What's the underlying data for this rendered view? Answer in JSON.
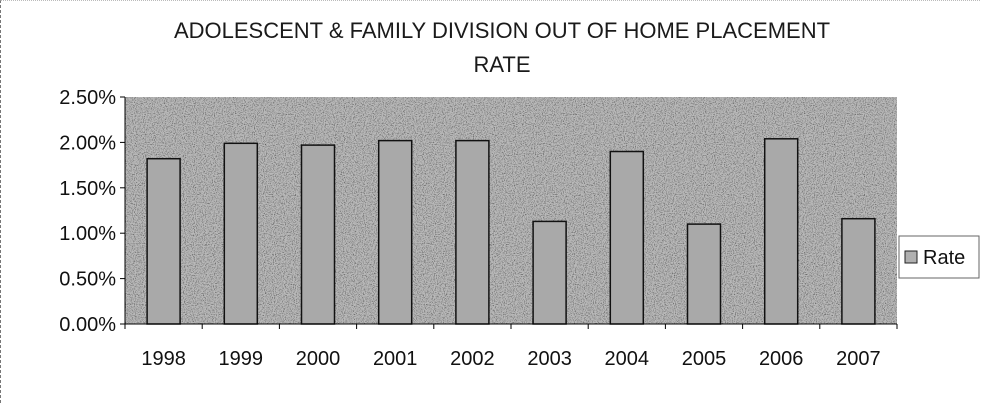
{
  "chart_data": {
    "type": "bar",
    "title": "ADOLESCENT & FAMILY DIVISION OUT OF HOME PLACEMENT RATE",
    "title_lines": [
      "ADOLESCENT & FAMILY DIVISION OUT OF HOME PLACEMENT",
      "RATE"
    ],
    "categories": [
      "1998",
      "1999",
      "2000",
      "2001",
      "2002",
      "2003",
      "2004",
      "2005",
      "2006",
      "2007"
    ],
    "series": [
      {
        "name": "Rate",
        "values": [
          0.0182,
          0.0199,
          0.0197,
          0.0202,
          0.0202,
          0.0113,
          0.019,
          0.011,
          0.0204,
          0.0116
        ]
      }
    ],
    "ylim": [
      0,
      0.025
    ],
    "yticks": [
      0,
      0.005,
      0.01,
      0.015,
      0.02,
      0.025
    ],
    "ytick_labels": [
      "0.00%",
      "0.50%",
      "1.00%",
      "1.50%",
      "2.00%",
      "2.50%"
    ],
    "xlabel": "",
    "ylabel": "",
    "grid": false,
    "legend_position": "right",
    "colors": {
      "plot_background": "#b9b9b9",
      "bar_fill": "#a9a9a9",
      "bar_edge": "#111111"
    }
  }
}
